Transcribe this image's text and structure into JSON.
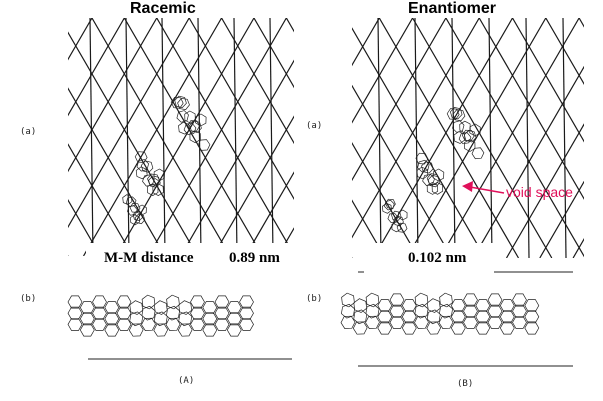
{
  "headings": {
    "racemic": "Racemic",
    "enantiomer": "Enantiomer"
  },
  "panel_labels": {
    "a_left": "(a)",
    "a_right": "(a)",
    "b_left": "(b)",
    "b_right": "(b)",
    "A": "(A)",
    "B": "(B)"
  },
  "measurements": {
    "racemic_label": "M-M distance",
    "racemic_value": "0.89 nm",
    "enantiomer_value": "0.102  nm"
  },
  "annotation": {
    "void_space": "void space",
    "color": "#e0105a"
  }
}
